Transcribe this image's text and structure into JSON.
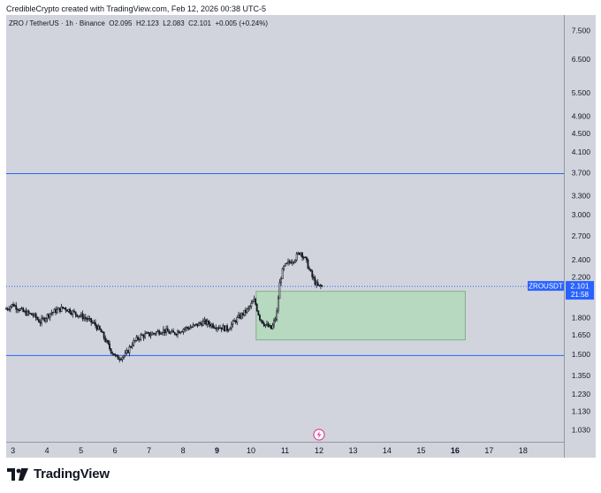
{
  "header": {
    "credit": "CredibleCrypto created with TradingView.com, Feb 12, 2026 00:38 UTC-5"
  },
  "symbol_bar": {
    "symbol": "ZRO / TetherUS · 1h · Binance",
    "open_label": "O",
    "open": "2.095",
    "high_label": "H",
    "high": "2.123",
    "low_label": "L",
    "low": "2.083",
    "close_label": "C",
    "close": "2.101",
    "change": "+0.005 (+0.24%)"
  },
  "price_tag": {
    "ticker": "ZROUSDT",
    "price": "2.101",
    "countdown": "21:58",
    "color": "#2962ff"
  },
  "footer": {
    "brand": "TradingView"
  },
  "colors": {
    "plot_background": "#d1d4dc",
    "candle": "#131722",
    "horizontal_line": "#2962ff",
    "zone_fill": "#b7d9bf",
    "zone_border": "#7fae8c"
  },
  "chart_data": {
    "type": "candlestick",
    "y_scale": "log",
    "ylim": [
      0.97,
      8.1
    ],
    "y_ticks": [
      7.5,
      6.5,
      5.5,
      4.9,
      4.5,
      4.1,
      3.7,
      3.3,
      3.0,
      2.7,
      2.4,
      2.2,
      2.0,
      1.8,
      1.65,
      1.5,
      1.35,
      1.23,
      1.13,
      1.03
    ],
    "y_tick_labels": [
      "7.500",
      "6.500",
      "5.500",
      "4.900",
      "4.500",
      "4.100",
      "3.700",
      "3.300",
      "3.000",
      "2.700",
      "2.400",
      "2.200",
      "2.000",
      "1.800",
      "1.650",
      "1.500",
      "1.350",
      "1.230",
      "1.130",
      "1.030"
    ],
    "x_ticks": [
      "3",
      "4",
      "5",
      "6",
      "7",
      "8",
      "9",
      "10",
      "11",
      "12",
      "13",
      "14",
      "15",
      "16",
      "17",
      "18"
    ],
    "x_ticks_bold": [
      "9",
      "16"
    ],
    "xlim": [
      2.8,
      19.2
    ],
    "horizontal_lines": [
      3.68,
      1.49
    ],
    "current_price": 2.101,
    "zone": {
      "x_start": 10.15,
      "x_end": 16.3,
      "y_low": 1.61,
      "y_high": 2.05
    },
    "price_path": [
      [
        2.8,
        1.88
      ],
      [
        3.0,
        1.92
      ],
      [
        3.3,
        1.85
      ],
      [
        3.6,
        1.82
      ],
      [
        3.8,
        1.76
      ],
      [
        4.1,
        1.84
      ],
      [
        4.5,
        1.89
      ],
      [
        4.8,
        1.84
      ],
      [
        5.1,
        1.8
      ],
      [
        5.4,
        1.74
      ],
      [
        5.6,
        1.67
      ],
      [
        5.85,
        1.54
      ],
      [
        6.05,
        1.47
      ],
      [
        6.3,
        1.49
      ],
      [
        6.5,
        1.58
      ],
      [
        6.75,
        1.64
      ],
      [
        7.1,
        1.66
      ],
      [
        7.4,
        1.69
      ],
      [
        7.7,
        1.66
      ],
      [
        8.0,
        1.7
      ],
      [
        8.3,
        1.72
      ],
      [
        8.6,
        1.76
      ],
      [
        8.9,
        1.73
      ],
      [
        9.3,
        1.7
      ],
      [
        9.6,
        1.79
      ],
      [
        9.9,
        1.87
      ],
      [
        10.1,
        1.96
      ],
      [
        10.25,
        1.8
      ],
      [
        10.4,
        1.74
      ],
      [
        10.6,
        1.7
      ],
      [
        10.75,
        1.82
      ],
      [
        10.85,
        2.16
      ],
      [
        10.95,
        2.3
      ],
      [
        11.1,
        2.36
      ],
      [
        11.3,
        2.42
      ],
      [
        11.45,
        2.5
      ],
      [
        11.6,
        2.4
      ],
      [
        11.8,
        2.2
      ],
      [
        11.95,
        2.1
      ],
      [
        12.1,
        2.101
      ]
    ]
  },
  "chart_icons": {
    "lightning_badge": "lightning-icon"
  }
}
